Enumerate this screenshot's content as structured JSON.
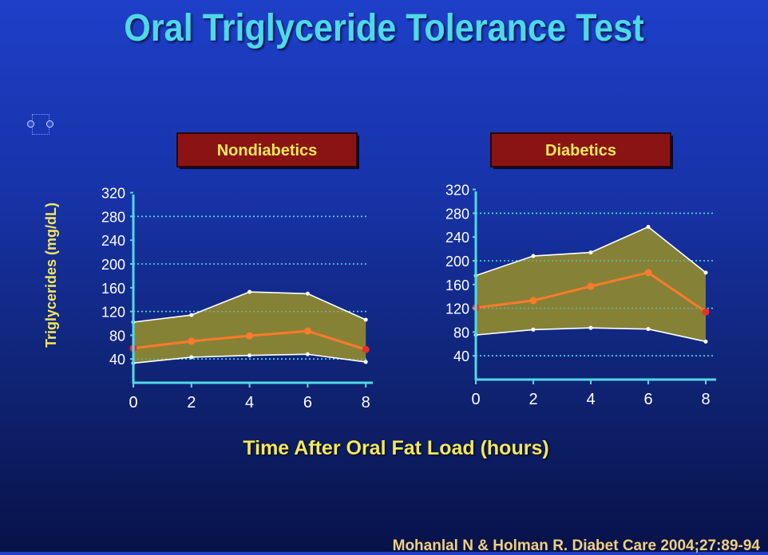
{
  "title": "Oral Triglyceride Tolerance Test",
  "citation": "Mohanlal N & Holman R. Diabet Care 2004;27:89-94",
  "colors": {
    "title": "#4fd8e8",
    "axis": "#52d8e8",
    "gridline": "#52d8e8",
    "band_fill": "#8f8a30",
    "band_edge": "#ffffff",
    "mean_line": "#ff7a2a",
    "panel_label_bg": "#8a1414",
    "panel_label_text": "#f4e85a",
    "axis_label_text": "#f4e85a",
    "tick_text": "#ffffff"
  },
  "chart_data": [
    {
      "type": "area",
      "title": "Nondiabetics",
      "xlabel": "Time After Oral Fat Load (hours)",
      "ylabel": "Triglycerides (mg/dL)",
      "x": [
        0,
        2,
        4,
        6,
        8
      ],
      "xticks": [
        0,
        2,
        4,
        6,
        8
      ],
      "yticks": [
        40,
        80,
        120,
        160,
        200,
        240,
        280,
        320
      ],
      "ylim": [
        0,
        320
      ],
      "gridlines_y": [
        40,
        120,
        200,
        280
      ],
      "series": [
        {
          "values": [
            102,
            114,
            153,
            150,
            106
          ]
        },
        {
          "values": [
            58,
            70,
            79,
            87,
            56
          ]
        },
        {
          "values": [
            33,
            43,
            46,
            48,
            35
          ]
        }
      ]
    },
    {
      "type": "area",
      "title": "Diabetics",
      "xlabel": "Time After Oral Fat Load (hours)",
      "ylabel": "Triglycerides (mg/dL)",
      "x": [
        0,
        2,
        4,
        6,
        8
      ],
      "xticks": [
        0,
        2,
        4,
        6,
        8
      ],
      "yticks": [
        40,
        80,
        120,
        160,
        200,
        240,
        280,
        320
      ],
      "ylim": [
        0,
        320
      ],
      "gridlines_y": [
        40,
        120,
        200,
        280
      ],
      "series": [
        {
          "values": [
            175,
            208,
            214,
            257,
            180
          ]
        },
        {
          "values": [
            121,
            133,
            157,
            180,
            114
          ]
        },
        {
          "values": [
            75,
            84,
            87,
            85,
            64
          ]
        }
      ]
    }
  ]
}
